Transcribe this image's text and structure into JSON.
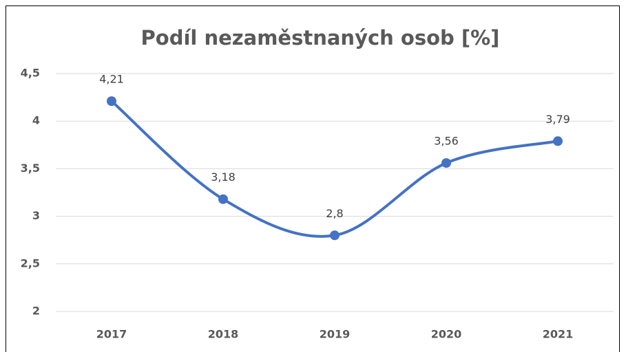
{
  "chart_data": {
    "type": "line",
    "title": "Podíl nezaměstnaných osob [%]",
    "categories": [
      "2017",
      "2018",
      "2019",
      "2020",
      "2021"
    ],
    "series": [
      {
        "name": "Podíl nezaměstnaných osob [%]",
        "color": "#4472c4",
        "values": [
          4.21,
          3.18,
          2.8,
          3.56,
          3.79
        ],
        "value_labels": [
          "4,21",
          "3,18",
          "2,8",
          "3,56",
          "3,79"
        ]
      }
    ],
    "ylim": [
      2,
      4.5
    ],
    "yticks": [
      2,
      {
        "value": 2.5,
        "label": "2,5"
      },
      3,
      {
        "value": 3.5,
        "label": "3,5"
      },
      4,
      {
        "value": 4.5,
        "label": "4,5"
      }
    ],
    "grid": true,
    "smooth": true
  }
}
